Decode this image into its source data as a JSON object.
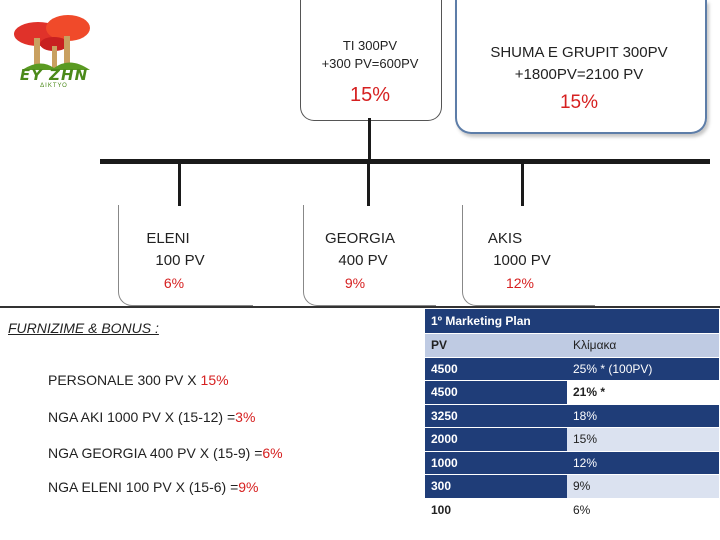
{
  "logo": {
    "text": "EY ZHN",
    "subtext": "ΔΙΚΤΥΟ",
    "icon": "mushroom-logo-icon"
  },
  "top_box": {
    "line1": "TI 300PV",
    "line2": "+300 PV=600PV",
    "percent": "15%"
  },
  "group_box": {
    "line1": "SHUMA E GRUPIT 300PV",
    "line2": "+1800PV=2100 PV",
    "percent": "15%"
  },
  "children": [
    {
      "name": "ELENI",
      "pv": "100 PV",
      "percent": "6%"
    },
    {
      "name": "GEORGIA",
      "pv": "400 PV",
      "percent": "9%"
    },
    {
      "name": "AKIS",
      "pv": "1000 PV",
      "percent": "12%"
    }
  ],
  "furnizime": {
    "title": "FURNIZIME  & BONUS :",
    "lines": [
      {
        "text": "PERSONALE 300 PV X  ",
        "highlight": "15%"
      },
      {
        "text": "NGA AKI 1000 PV  X (15-12) =",
        "highlight": "3%"
      },
      {
        "text": "NGA GEORGIA 400 PV  X (15-9) =",
        "highlight": "6%"
      },
      {
        "text": "NGA ELENI 100 PV  X (15-6) =",
        "highlight": "9%"
      }
    ]
  },
  "marketing_table": {
    "title": "1º Marketing Plan",
    "headers": [
      "PV",
      "Κλίμακα"
    ],
    "rows": [
      [
        "4500",
        "25% * (100PV)"
      ],
      [
        "4500",
        "21% *"
      ],
      [
        "3250",
        "18%"
      ],
      [
        "2000",
        "15%"
      ],
      [
        "1000",
        "12%"
      ],
      [
        "300",
        "9%"
      ],
      [
        "100",
        "6%"
      ]
    ]
  },
  "colors": {
    "accent_red": "#d62020",
    "table_dark": "#1f3d78",
    "table_light": "#dbe2f0",
    "logo_green": "#4c8a1a"
  }
}
